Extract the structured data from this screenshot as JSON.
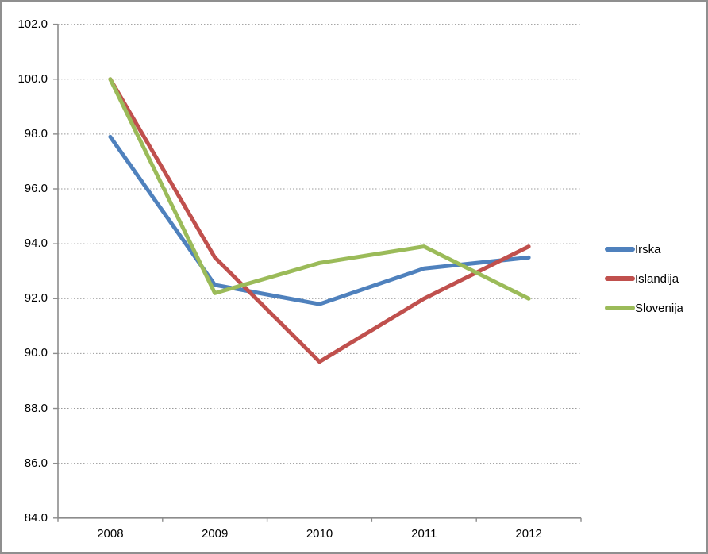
{
  "figure": {
    "background": "#FFFFFF",
    "border_color": "#8F8F8F"
  },
  "chart_data": {
    "type": "line",
    "title": "",
    "xlabel": "",
    "ylabel": "",
    "x_labels": [
      "2008",
      "2009",
      "2010",
      "2011",
      "2012"
    ],
    "series": [
      {
        "name": "Irska",
        "color": "#4F81BD",
        "values": [
          97.9,
          92.5,
          91.8,
          93.1,
          93.5
        ]
      },
      {
        "name": "Islandija",
        "color": "#C0504D",
        "values": [
          100.0,
          93.5,
          89.7,
          92.0,
          93.9
        ]
      },
      {
        "name": "Slovenija",
        "color": "#9BBB59",
        "values": [
          100.0,
          92.2,
          93.3,
          93.9,
          92.0
        ]
      }
    ],
    "ylim": [
      84.0,
      102.0
    ],
    "yticks": [
      {
        "value": 84.0,
        "label": "84.0"
      },
      {
        "value": 86.0,
        "label": "86.0"
      },
      {
        "value": 88.0,
        "label": "88.0"
      },
      {
        "value": 90.0,
        "label": "90.0"
      },
      {
        "value": 92.0,
        "label": "92.0"
      },
      {
        "value": 94.0,
        "label": "94.0"
      },
      {
        "value": 96.0,
        "label": "96.0"
      },
      {
        "value": 98.0,
        "label": "98.0"
      },
      {
        "value": 100.0,
        "label": "100.0"
      },
      {
        "value": 102.0,
        "label": "102.0"
      }
    ],
    "grid": {
      "horizontal": true,
      "style": "dotted",
      "color": "#999999"
    },
    "axis_color": "#8C8C8C",
    "text_color": "#000000",
    "line_width": 5,
    "legend_position": "right"
  }
}
